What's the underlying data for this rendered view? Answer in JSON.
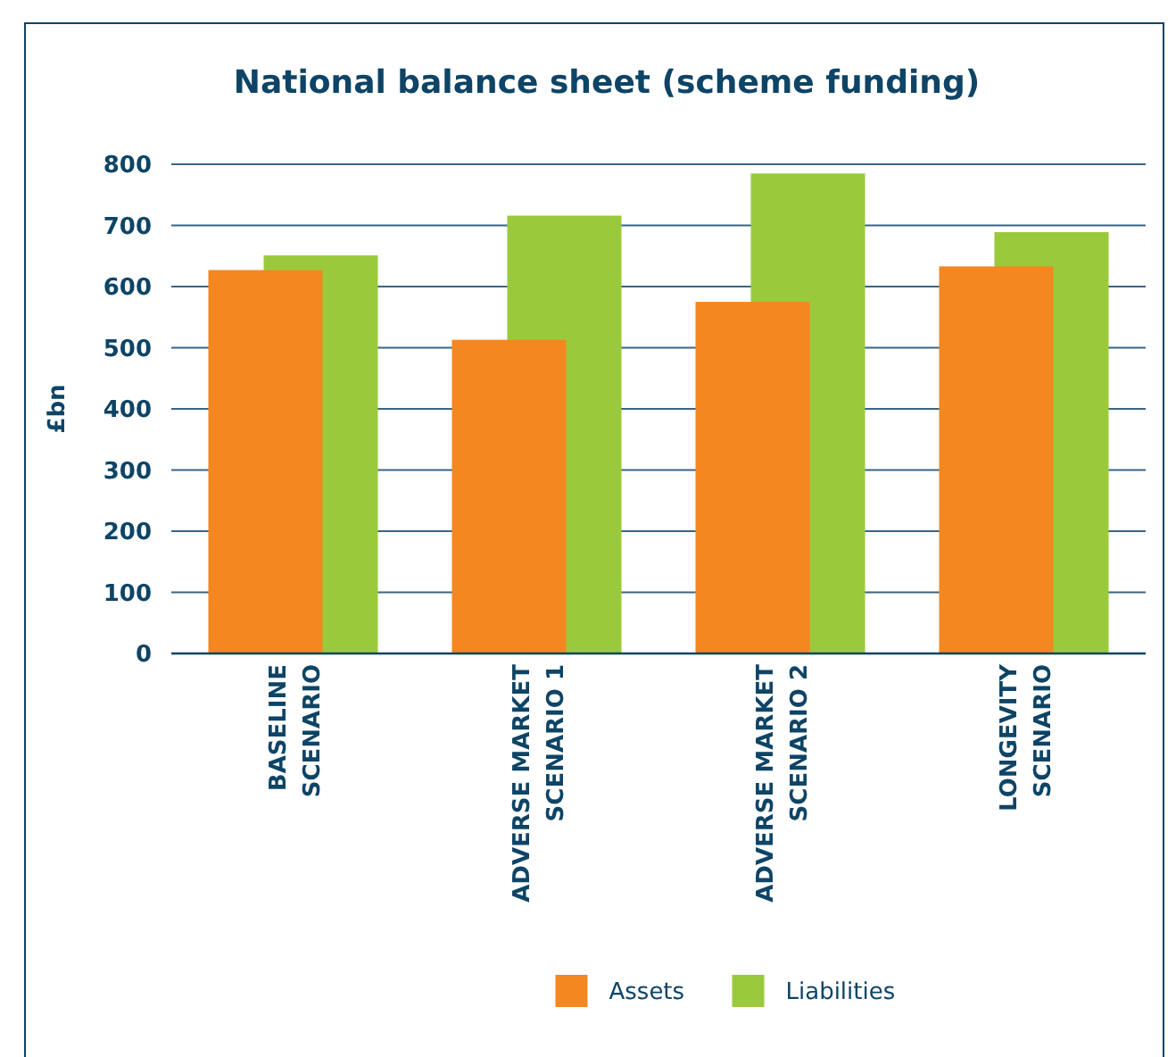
{
  "chart_data": {
    "type": "bar",
    "title": "National balance sheet (scheme funding)",
    "ylabel": "£bn",
    "categories": [
      "BASELINE SCENARIO",
      "ADVERSE MARKET SCENARIO 1",
      "ADVERSE MARKET SCENARIO 2",
      "LONGEVITY SCENARIO"
    ],
    "series": [
      {
        "name": "Assets",
        "color": "#f4871f",
        "values": [
          627,
          513,
          575,
          633
        ]
      },
      {
        "name": "Liabilities",
        "color": "#9aca3c",
        "values": [
          651,
          716,
          785,
          689
        ]
      }
    ],
    "ylim": [
      0,
      800
    ],
    "yticks": [
      0,
      100,
      200,
      300,
      400,
      500,
      600,
      700,
      800
    ],
    "grid": "y",
    "legend": "bottom"
  }
}
